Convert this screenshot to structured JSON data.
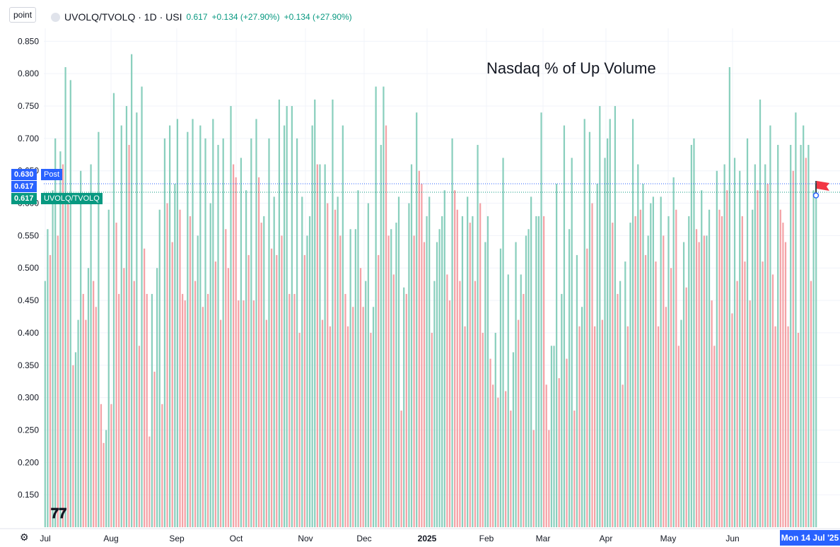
{
  "toolbar": {
    "scale_label": "point"
  },
  "legend": {
    "symbol": "UVOLQ/TVOLQ · 1D · USI",
    "last": "0.617",
    "change1": "+0.134 (+27.90%)",
    "change2": "+0.134 (+27.90%)"
  },
  "annotation": "Nasdaq % of Up Volume",
  "price_tags": [
    {
      "value": "0.630",
      "label": "Post",
      "color": "#2962ff"
    },
    {
      "value": "0.617",
      "label": "",
      "color": "#2962ff"
    },
    {
      "value": "0.617",
      "label": "UVOLQ/TVOLQ",
      "color": "#089981"
    }
  ],
  "x_last_label": "Mon 14 Jul '25",
  "colors": {
    "up": "#89cfbd",
    "down": "#f4a2a6",
    "accent": "#2962ff",
    "green": "#089981"
  },
  "icons": {
    "settings": "gear-icon",
    "logo": "tradingview-logo",
    "flag": "flag-icon"
  },
  "chart_data": {
    "type": "bar",
    "ylim": [
      0.1,
      0.87
    ],
    "yticks": [
      0.15,
      0.2,
      0.25,
      0.3,
      0.35,
      0.4,
      0.45,
      0.5,
      0.55,
      0.6,
      0.65,
      0.7,
      0.75,
      0.8,
      0.85
    ],
    "month_labels": [
      "Jul",
      "Aug",
      "Sep",
      "Oct",
      "Nov",
      "Dec",
      "2025",
      "Feb",
      "Mar",
      "Apr",
      "May",
      "Jun"
    ],
    "values": [
      0.48,
      0.56,
      0.52,
      0.62,
      0.7,
      0.55,
      0.68,
      0.66,
      0.81,
      0.61,
      0.79,
      0.35,
      0.37,
      0.42,
      0.65,
      0.46,
      0.42,
      0.5,
      0.66,
      0.48,
      0.44,
      0.71,
      0.29,
      0.23,
      0.25,
      0.59,
      0.29,
      0.77,
      0.57,
      0.46,
      0.72,
      0.5,
      0.75,
      0.69,
      0.83,
      0.48,
      0.74,
      0.38,
      0.78,
      0.53,
      0.46,
      0.24,
      0.46,
      0.34,
      0.5,
      0.59,
      0.29,
      0.7,
      0.6,
      0.72,
      0.54,
      0.63,
      0.73,
      0.59,
      0.46,
      0.45,
      0.71,
      0.58,
      0.73,
      0.48,
      0.55,
      0.72,
      0.44,
      0.7,
      0.46,
      0.6,
      0.73,
      0.51,
      0.69,
      0.42,
      0.7,
      0.56,
      0.5,
      0.75,
      0.66,
      0.64,
      0.45,
      0.67,
      0.45,
      0.62,
      0.52,
      0.7,
      0.45,
      0.73,
      0.64,
      0.57,
      0.58,
      0.42,
      0.7,
      0.53,
      0.61,
      0.52,
      0.76,
      0.55,
      0.72,
      0.75,
      0.46,
      0.75,
      0.46,
      0.7,
      0.4,
      0.61,
      0.52,
      0.55,
      0.58,
      0.72,
      0.76,
      0.66,
      0.66,
      0.42,
      0.66,
      0.6,
      0.41,
      0.76,
      0.59,
      0.61,
      0.55,
      0.72,
      0.46,
      0.41,
      0.56,
      0.44,
      0.56,
      0.62,
      0.5,
      0.44,
      0.48,
      0.6,
      0.4,
      0.44,
      0.78,
      0.52,
      0.69,
      0.78,
      0.72,
      0.55,
      0.56,
      0.49,
      0.57,
      0.61,
      0.28,
      0.47,
      0.46,
      0.6,
      0.66,
      0.55,
      0.74,
      0.65,
      0.63,
      0.54,
      0.58,
      0.61,
      0.4,
      0.48,
      0.54,
      0.56,
      0.58,
      0.62,
      0.49,
      0.45,
      0.7,
      0.62,
      0.59,
      0.48,
      0.58,
      0.41,
      0.61,
      0.57,
      0.58,
      0.48,
      0.69,
      0.6,
      0.4,
      0.54,
      0.58,
      0.36,
      0.32,
      0.4,
      0.3,
      0.53,
      0.67,
      0.31,
      0.49,
      0.28,
      0.37,
      0.54,
      0.42,
      0.49,
      0.46,
      0.55,
      0.56,
      0.61,
      0.25,
      0.58,
      0.58,
      0.74,
      0.58,
      0.32,
      0.25,
      0.38,
      0.38,
      0.63,
      0.33,
      0.46,
      0.72,
      0.36,
      0.56,
      0.67,
      0.28,
      0.52,
      0.41,
      0.44,
      0.73,
      0.53,
      0.71,
      0.6,
      0.41,
      0.63,
      0.75,
      0.42,
      0.67,
      0.7,
      0.73,
      0.57,
      0.75,
      0.46,
      0.48,
      0.32,
      0.51,
      0.41,
      0.57,
      0.73,
      0.58,
      0.66,
      0.59,
      0.63,
      0.52,
      0.55,
      0.6,
      0.61,
      0.51,
      0.41,
      0.61,
      0.55,
      0.44,
      0.58,
      0.5,
      0.64,
      0.59,
      0.38,
      0.42,
      0.54,
      0.47,
      0.58,
      0.69,
      0.7,
      0.56,
      0.54,
      0.62,
      0.55,
      0.55,
      0.59,
      0.45,
      0.38,
      0.65,
      0.59,
      0.58,
      0.66,
      0.62,
      0.81,
      0.43,
      0.67,
      0.48,
      0.65,
      0.58,
      0.51,
      0.7,
      0.45,
      0.59,
      0.66,
      0.62,
      0.76,
      0.51,
      0.66,
      0.63,
      0.72,
      0.49,
      0.41,
      0.69,
      0.59,
      0.57,
      0.54,
      0.41,
      0.69,
      0.65,
      0.74,
      0.4,
      0.69,
      0.72,
      0.67,
      0.69,
      0.48,
      0.62,
      0.63
    ]
  }
}
